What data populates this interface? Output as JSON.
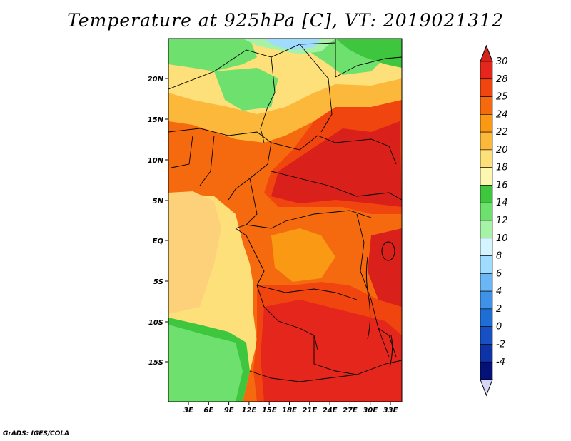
{
  "title": "Temperature at 925hPa [C], VT: 2019021312",
  "credit": "GrADS: IGES/COLA",
  "map": {
    "lat_labels": [
      "20N",
      "15N",
      "10N",
      "5N",
      "EQ",
      "5S",
      "10S",
      "15S"
    ],
    "lon_labels": [
      "3E",
      "6E",
      "9E",
      "12E",
      "15E",
      "18E",
      "21E",
      "24E",
      "27E",
      "30E",
      "33E"
    ]
  },
  "colorbar": {
    "labels": [
      "30",
      "28",
      "25",
      "24",
      "22",
      "20",
      "18",
      "16",
      "14",
      "12",
      "10",
      "8",
      "6",
      "4",
      "2",
      "0",
      "-2",
      "-4"
    ],
    "colors": [
      "#e5261c",
      "#f0450f",
      "#f56a0f",
      "#fa9a14",
      "#fcb83a",
      "#fde07a",
      "#fdf7b0",
      "#3ec63e",
      "#6ee06e",
      "#a6f2a6",
      "#d4f5ff",
      "#9fdcff",
      "#6bb6f4",
      "#4091e8",
      "#1f6ed6",
      "#1650c2",
      "#0d33a6",
      "#041178"
    ],
    "top_arrow_color": "#d4231a",
    "bottom_arrow_color": "#d6d6f5"
  }
}
